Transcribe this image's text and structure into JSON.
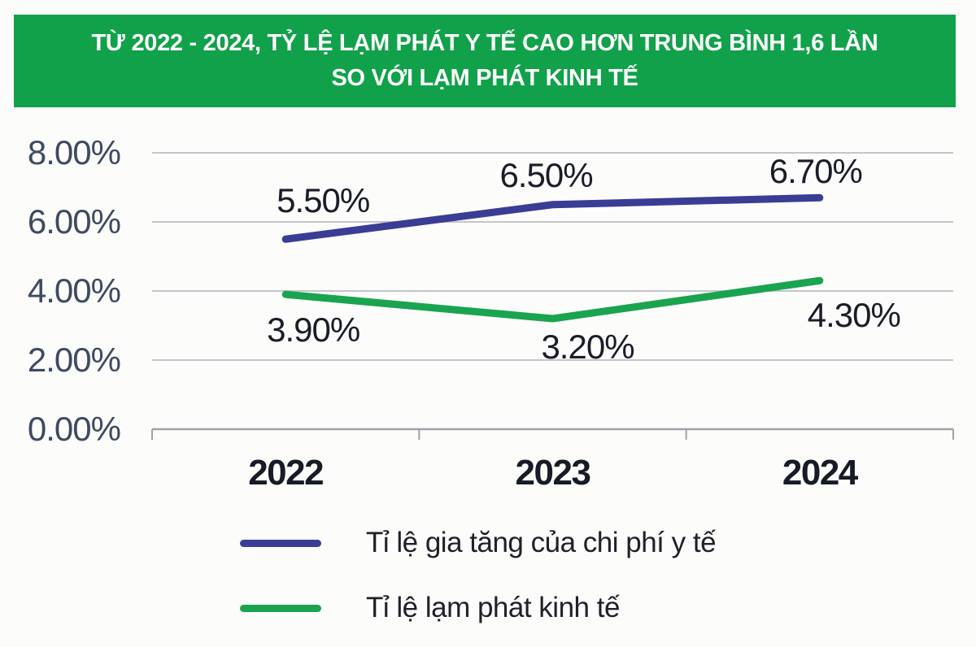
{
  "banner": {
    "line1": "TỪ 2022 - 2024, TỶ LỆ LẠM PHÁT Y TẾ CAO HƠN TRUNG BÌNH 1,6 LẦN",
    "line2": "SO VỚI LẠM PHÁT KINH TẾ",
    "bg_color": "#11A14A",
    "text_color": "#FFFFFF"
  },
  "chart_data": {
    "type": "line",
    "x": [
      "2022",
      "2023",
      "2024"
    ],
    "series": [
      {
        "name": "Tỉ lệ gia tăng của chi phí y tế",
        "values": [
          5.5,
          6.5,
          6.7
        ],
        "labels": [
          "5.50%",
          "6.50%",
          "6.70%"
        ],
        "color": "#3A3D94"
      },
      {
        "name": "Tỉ lệ lạm phát kinh tế",
        "values": [
          3.9,
          3.2,
          4.3
        ],
        "labels": [
          "3.90%",
          "3.20%",
          "4.30%"
        ],
        "color": "#1AA44F"
      }
    ],
    "title": "TỪ 2022 - 2024, TỶ LỆ LẠM PHÁT Y TẾ CAO HƠN TRUNG BÌNH 1,6 LẦN SO VỚI LẠM PHÁT KINH TẾ",
    "xlabel": "",
    "ylabel": "",
    "ylim": [
      0,
      8
    ],
    "ytick_step": 2,
    "ytick_labels": [
      "0.00%",
      "2.00%",
      "4.00%",
      "6.00%",
      "8.00%"
    ],
    "grid": true,
    "legend_position": "bottom"
  },
  "colors": {
    "gridline": "#C2C5CA",
    "axis": "#9FA3A8",
    "background": "#FCFCFB"
  }
}
